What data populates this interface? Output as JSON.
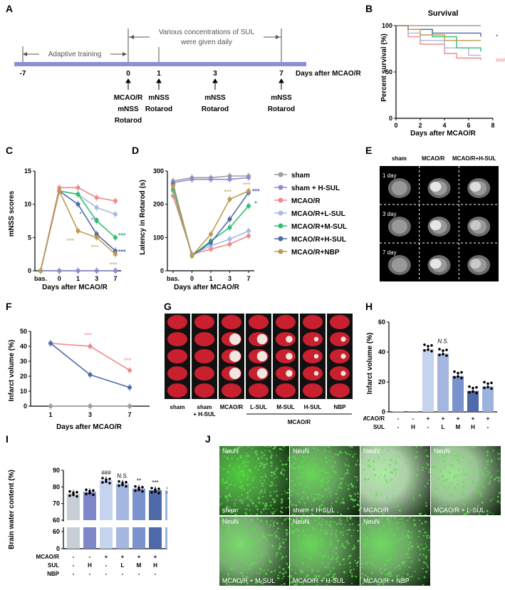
{
  "panel_labels": {
    "A": "A",
    "B": "B",
    "C": "C",
    "D": "D",
    "E": "E",
    "F": "F",
    "G": "G",
    "H": "H",
    "I": "I",
    "J": "J"
  },
  "timeline": {
    "adaptive": "Adaptive training",
    "sul_line1": "Various concentrations of SUL",
    "sul_line2": "were given daily",
    "axis_label": "Days after MCAO/R",
    "ticks": [
      "-7",
      "0",
      "1",
      "3",
      "7"
    ],
    "day0_lines": [
      "MCAO/R",
      "mNSS",
      "Rotarod"
    ],
    "day1_lines": [
      "mNSS",
      "Rotarod"
    ],
    "day3_lines": [
      "mNSS",
      "Rotarod"
    ],
    "day7_lines": [
      "mNSS",
      "Rotarod"
    ]
  },
  "survival": {
    "title": "Survival",
    "ylabel": "Percent survival (%)",
    "xlabel": "Days after MCAO/R",
    "yticks": [
      "0",
      "50",
      "100"
    ],
    "xticks": [
      "0",
      "2",
      "4",
      "6",
      "8"
    ],
    "sig_blue": "*",
    "sig_pink": "###",
    "colors": {
      "sham": "#9e9e9e",
      "pink": "#f08a8a",
      "lblue": "#a9b9e0",
      "green": "#2fbf71",
      "dblue": "#4f6aa8",
      "gold": "#c09a52"
    }
  },
  "legend_CD": [
    "sham",
    "sham + H-SUL",
    "MCAO/R",
    "MCAO/R+L-SUL",
    "MCAO/R+M-SUL",
    "MCAO/R+H-SUL",
    "MCAO/R+NBP"
  ],
  "legend_colors": [
    "#9e9e9e",
    "#8c8cd6",
    "#f08a8a",
    "#a9b9e0",
    "#2fbf71",
    "#4f6aa8",
    "#c09a52"
  ],
  "chart_data": [
    {
      "type": "line",
      "title": "Survival",
      "xlabel": "Days after MCAO/R",
      "ylabel": "Percent survival (%)",
      "xlim": [
        0,
        8
      ],
      "ylim": [
        0,
        100
      ],
      "series": [
        {
          "name": "sham",
          "x": [
            1,
            7
          ],
          "values": [
            100,
            100
          ]
        },
        {
          "name": "MCAO/R",
          "x": [
            1,
            2,
            3,
            4,
            5,
            6,
            7
          ],
          "values": [
            88,
            80,
            80,
            70,
            65,
            65,
            63
          ]
        },
        {
          "name": "MCAO/R+L-SUL",
          "x": [
            1,
            2,
            4,
            6,
            7
          ],
          "values": [
            92,
            84,
            76,
            68,
            68
          ]
        },
        {
          "name": "MCAO/R+M-SUL",
          "x": [
            1,
            3,
            5,
            7
          ],
          "values": [
            96,
            88,
            76,
            72
          ]
        },
        {
          "name": "MCAO/R+H-SUL",
          "x": [
            1,
            3,
            7
          ],
          "values": [
            96,
            92,
            88
          ]
        },
        {
          "name": "MCAO/R+NBP",
          "x": [
            1,
            2,
            4,
            7
          ],
          "values": [
            96,
            90,
            84,
            84
          ]
        }
      ]
    },
    {
      "type": "line",
      "xlabel": "Days after MCAO/R",
      "ylabel": "mNSS scores",
      "categories": [
        "bas.",
        "0",
        "1",
        "3",
        "7"
      ],
      "ylim": [
        0,
        15
      ],
      "yticks": [
        "0",
        "5",
        "10",
        "15"
      ],
      "series": [
        {
          "name": "sham",
          "values": [
            0,
            0,
            0,
            0,
            0
          ]
        },
        {
          "name": "sham + H-SUL",
          "values": [
            0,
            0,
            0,
            0,
            0
          ]
        },
        {
          "name": "MCAO/R",
          "values": [
            0,
            12.5,
            12.5,
            11,
            10.5
          ]
        },
        {
          "name": "MCAO/R+L-SUL",
          "values": [
            0,
            12,
            11.5,
            9.5,
            8.5
          ]
        },
        {
          "name": "MCAO/R+M-SUL",
          "values": [
            0,
            12,
            11.5,
            7.5,
            5
          ]
        },
        {
          "name": "MCAO/R+H-SUL",
          "values": [
            0,
            12,
            10,
            5.5,
            3
          ]
        },
        {
          "name": "MCAO/R+NBP",
          "values": [
            0,
            12,
            6,
            5,
            2.5
          ]
        }
      ],
      "annotations": [
        "*",
        "***",
        "***",
        "***",
        "***",
        "***",
        "***",
        "***"
      ]
    },
    {
      "type": "line",
      "xlabel": "Days after MCAO/R",
      "ylabel": "Latency in Rotarod (s)",
      "categories": [
        "bas.",
        "0",
        "1",
        "3",
        "7"
      ],
      "ylim": [
        0,
        300
      ],
      "yticks": [
        "0",
        "100",
        "200",
        "300"
      ],
      "series": [
        {
          "name": "sham",
          "values": [
            270,
            280,
            280,
            285,
            285
          ]
        },
        {
          "name": "sham + H-SUL",
          "values": [
            265,
            275,
            275,
            275,
            280
          ]
        },
        {
          "name": "MCAO/R",
          "values": [
            225,
            50,
            65,
            80,
            105
          ]
        },
        {
          "name": "MCAO/R+L-SUL",
          "values": [
            240,
            50,
            75,
            95,
            120
          ]
        },
        {
          "name": "MCAO/R+M-SUL",
          "values": [
            245,
            45,
            90,
            130,
            195
          ]
        },
        {
          "name": "MCAO/R+H-SUL",
          "values": [
            260,
            45,
            85,
            155,
            235
          ]
        },
        {
          "name": "MCAO/R+NBP",
          "values": [
            255,
            45,
            110,
            215,
            240
          ]
        }
      ],
      "annotations": [
        "***",
        "***",
        "***",
        "*"
      ]
    },
    {
      "type": "line",
      "xlabel": "Days after MCAO/R",
      "ylabel": "Infarct volume (%)",
      "categories": [
        "1",
        "3",
        "7"
      ],
      "ylim": [
        0,
        50
      ],
      "yticks": [
        "0",
        "10",
        "20",
        "30",
        "40",
        "50"
      ],
      "series": [
        {
          "name": "MCAO/R",
          "values": [
            42,
            40,
            24
          ]
        },
        {
          "name": "MCAO/R+H-SUL",
          "values": [
            42,
            21,
            12.5
          ]
        },
        {
          "name": "sham",
          "values": [
            0,
            0,
            0
          ]
        }
      ],
      "annotations": [
        "***",
        "***"
      ]
    },
    {
      "type": "bar",
      "ylabel": "Infarct volume (%)",
      "categories": [
        "1",
        "2",
        "3",
        "4",
        "5",
        "6",
        "7"
      ],
      "values": [
        0.3,
        0.3,
        42,
        39,
        24,
        14,
        17
      ],
      "ylim": [
        0,
        60
      ],
      "yticks": [
        "0",
        "20",
        "40",
        "60"
      ],
      "rows": {
        "MCAO/R": [
          "-",
          "-",
          "+",
          "+",
          "+",
          "+",
          "+"
        ],
        "SUL": [
          "-",
          "H",
          "-",
          "L",
          "M",
          "H",
          "-"
        ],
        "NBP": [
          "-",
          "-",
          "-",
          "-",
          "-",
          "-",
          "+"
        ]
      },
      "annotations": [
        "N.S."
      ]
    },
    {
      "type": "bar",
      "ylabel": "Brain water content (%)",
      "categories": [
        "1",
        "2",
        "3",
        "4",
        "5",
        "6",
        "7"
      ],
      "values": [
        76,
        77,
        84,
        82,
        79,
        78,
        78
      ],
      "yticks": [
        "0",
        "60",
        "70",
        "80",
        "90"
      ],
      "rows": {
        "MCAO/R": [
          "-",
          "-",
          "+",
          "+",
          "+",
          "+",
          "+"
        ],
        "SUL": [
          "-",
          "H",
          "-",
          "L",
          "M",
          "H",
          "-"
        ],
        "NBP": [
          "-",
          "-",
          "-",
          "-",
          "-",
          "-",
          "+"
        ]
      },
      "annotations": [
        "###",
        "N.S.",
        "**",
        "***",
        "***"
      ]
    }
  ],
  "panelC": {
    "ticks_x": [
      "bas.",
      "0",
      "1",
      "3",
      "7"
    ],
    "sig": [
      "*",
      "***",
      "***",
      "***",
      "***",
      "***",
      "***",
      "***"
    ]
  },
  "panelD": {
    "sig": [
      "***",
      "***",
      "***",
      "*"
    ]
  },
  "panelE": {
    "cols": [
      "sham",
      "MCAO/R",
      "MCAO/R+H-SUL"
    ],
    "rows": [
      "1 day",
      "3 day",
      "7 day"
    ]
  },
  "panelG": {
    "cols": [
      "sham",
      "sham + H-SUL",
      "MCAO/R",
      "L-SUL",
      "M-SUL",
      "H-SUL",
      "NBP"
    ],
    "group": "MCAO/R"
  },
  "panelH": {
    "sig": "N.S.",
    "row_labels": [
      "MCAO/R",
      "SUL",
      "NBP"
    ]
  },
  "panelI": {
    "sig": [
      "###",
      "N.S.",
      "**",
      "***",
      "***"
    ],
    "row_labels": [
      "MCAO/R",
      "SUL",
      "NBP"
    ]
  },
  "panelJ": {
    "stain": "NeuN",
    "labels": [
      "sham",
      "sham + H-SUL",
      "MCAO/R",
      "MCAO/R + L-SUL",
      "MCAO/R + M-SUL",
      "MCAO/R + H-SUL",
      "MCAO/R + NBP"
    ]
  }
}
